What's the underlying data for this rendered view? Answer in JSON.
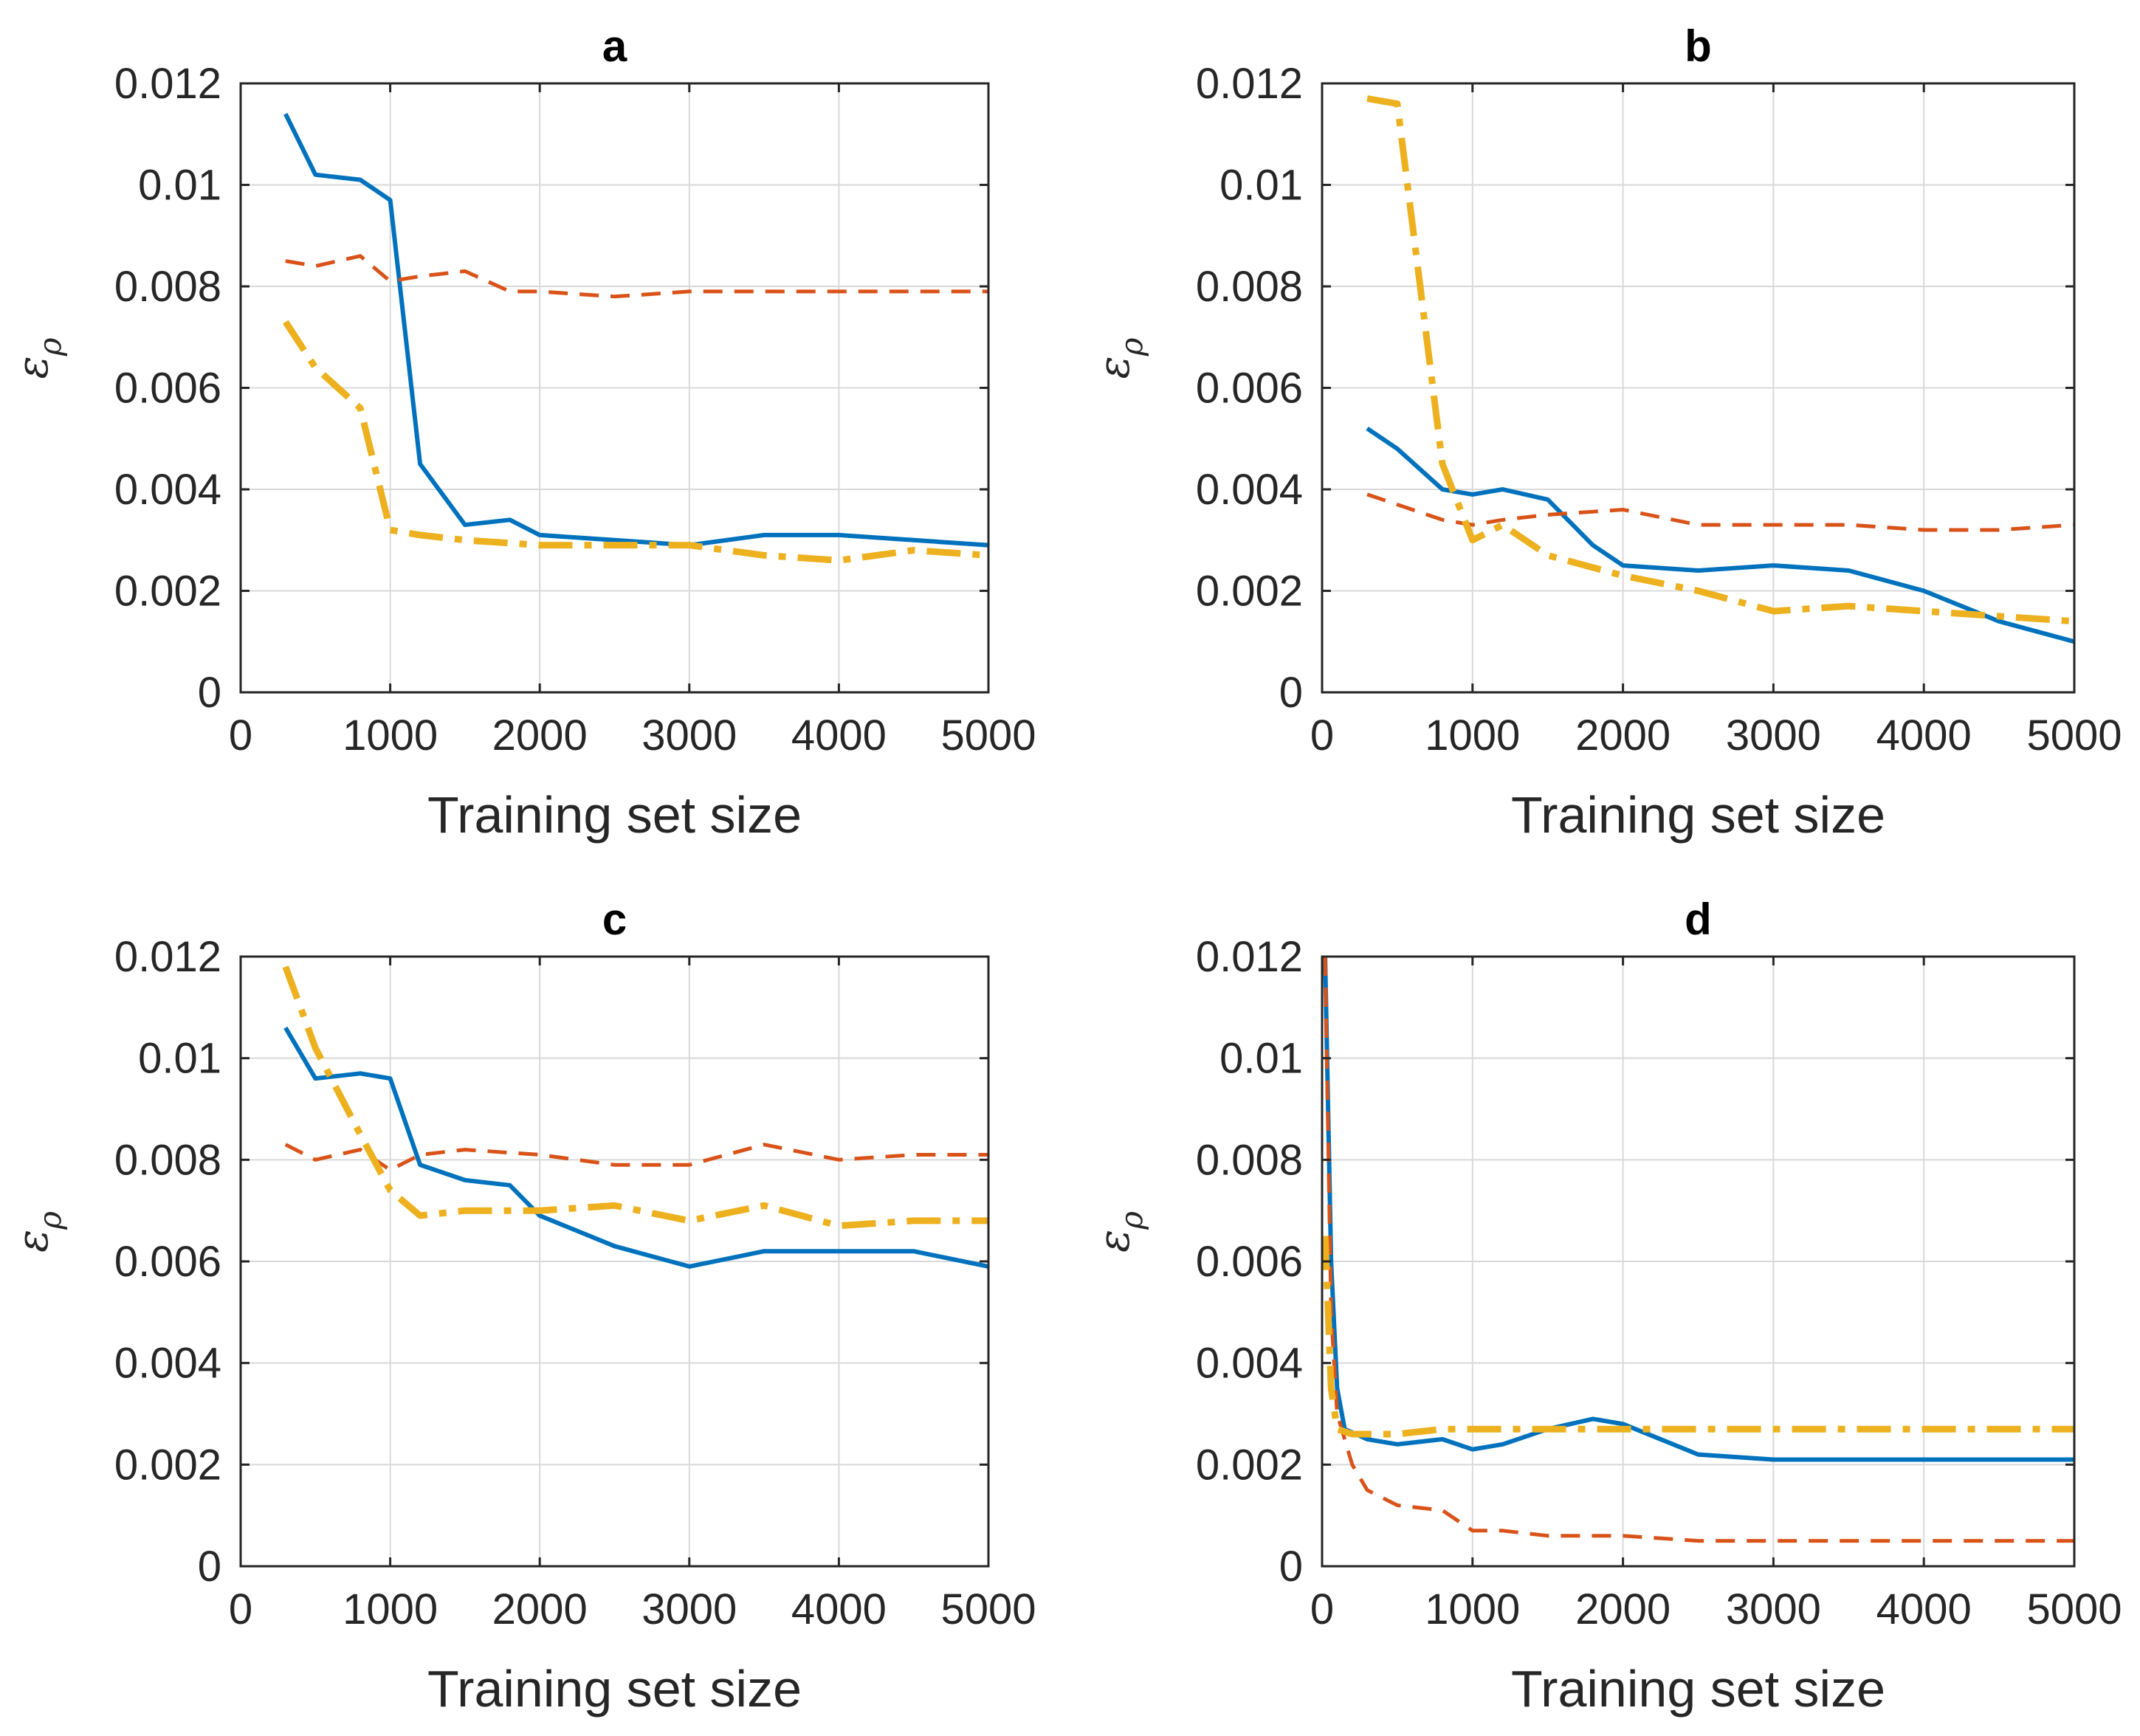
{
  "colors": {
    "blue": "#0072BD",
    "orange": "#D95319",
    "yellow": "#EDB120"
  },
  "chart_data": [
    {
      "type": "line",
      "title": "a",
      "xlabel": "Training set size",
      "ylabel": "ε",
      "ylabel_sub": "ρ",
      "xlim": [
        0,
        5000
      ],
      "ylim": [
        0,
        0.012
      ],
      "xticks": [
        0,
        1000,
        2000,
        3000,
        4000,
        5000
      ],
      "xtick_labels": [
        "0",
        "1000",
        "2000",
        "3000",
        "4000",
        "5000"
      ],
      "yticks": [
        0,
        0.002,
        0.004,
        0.006,
        0.008,
        0.01,
        0.012
      ],
      "ytick_labels": [
        "0",
        "0.002",
        "0.004",
        "0.006",
        "0.008",
        "0.01",
        "0.012"
      ],
      "grid": true,
      "series": [
        {
          "name": "solid",
          "color": "#0072BD",
          "dash": "solid",
          "width": 6,
          "x": [
            300,
            500,
            800,
            1000,
            1200,
            1500,
            1800,
            2000,
            2500,
            3000,
            3500,
            4000,
            4500,
            5000
          ],
          "y": [
            0.0114,
            0.0102,
            0.0101,
            0.0097,
            0.0045,
            0.0033,
            0.0034,
            0.0031,
            0.003,
            0.0029,
            0.0031,
            0.0031,
            0.003,
            0.0029
          ]
        },
        {
          "name": "dashed",
          "color": "#D95319",
          "dash": "dashed",
          "width": 5,
          "x": [
            300,
            500,
            800,
            1000,
            1200,
            1500,
            1800,
            2000,
            2500,
            3000,
            3500,
            4000,
            4500,
            5000
          ],
          "y": [
            0.0085,
            0.0084,
            0.0086,
            0.0081,
            0.0082,
            0.0083,
            0.0079,
            0.0079,
            0.0078,
            0.0079,
            0.0079,
            0.0079,
            0.0079,
            0.0079
          ]
        },
        {
          "name": "dashdot",
          "color": "#EDB120",
          "dash": "dashdot",
          "width": 9,
          "x": [
            300,
            500,
            800,
            1000,
            1200,
            1500,
            2000,
            2500,
            3000,
            3500,
            4000,
            4500,
            5000
          ],
          "y": [
            0.0073,
            0.0064,
            0.0056,
            0.0032,
            0.0031,
            0.003,
            0.0029,
            0.0029,
            0.0029,
            0.0027,
            0.0026,
            0.0028,
            0.0027
          ]
        }
      ]
    },
    {
      "type": "line",
      "title": "b",
      "xlabel": "Training set size",
      "ylabel": "ε",
      "ylabel_sub": "ρ",
      "xlim": [
        0,
        5000
      ],
      "ylim": [
        0,
        0.012
      ],
      "xticks": [
        0,
        1000,
        2000,
        3000,
        4000,
        5000
      ],
      "xtick_labels": [
        "0",
        "1000",
        "2000",
        "3000",
        "4000",
        "5000"
      ],
      "yticks": [
        0,
        0.002,
        0.004,
        0.006,
        0.008,
        0.01,
        0.012
      ],
      "ytick_labels": [
        "0",
        "0.002",
        "0.004",
        "0.006",
        "0.008",
        "0.01",
        "0.012"
      ],
      "grid": true,
      "series": [
        {
          "name": "solid",
          "color": "#0072BD",
          "dash": "solid",
          "width": 6,
          "x": [
            300,
            500,
            800,
            1000,
            1200,
            1500,
            1800,
            2000,
            2500,
            3000,
            3500,
            4000,
            4500,
            5000
          ],
          "y": [
            0.0052,
            0.0048,
            0.004,
            0.0039,
            0.004,
            0.0038,
            0.0029,
            0.0025,
            0.0024,
            0.0025,
            0.0024,
            0.002,
            0.0014,
            0.001
          ]
        },
        {
          "name": "dashed",
          "color": "#D95319",
          "dash": "dashed",
          "width": 5,
          "x": [
            300,
            500,
            800,
            1000,
            1200,
            1500,
            2000,
            2500,
            3000,
            3500,
            4000,
            4500,
            5000
          ],
          "y": [
            0.0039,
            0.0037,
            0.0034,
            0.0033,
            0.0034,
            0.0035,
            0.0036,
            0.0033,
            0.0033,
            0.0033,
            0.0032,
            0.0032,
            0.0033
          ]
        },
        {
          "name": "dashdot",
          "color": "#EDB120",
          "dash": "dashdot",
          "width": 9,
          "x": [
            300,
            500,
            800,
            1000,
            1200,
            1500,
            2000,
            2500,
            3000,
            3500,
            4000,
            4500,
            5000
          ],
          "y": [
            0.0117,
            0.0116,
            0.0045,
            0.003,
            0.0033,
            0.0027,
            0.0023,
            0.002,
            0.0016,
            0.0017,
            0.0016,
            0.0015,
            0.0014
          ]
        }
      ]
    },
    {
      "type": "line",
      "title": "c",
      "xlabel": "Training set size",
      "ylabel": "ε",
      "ylabel_sub": "ρ",
      "xlim": [
        0,
        5000
      ],
      "ylim": [
        0,
        0.012
      ],
      "xticks": [
        0,
        1000,
        2000,
        3000,
        4000,
        5000
      ],
      "xtick_labels": [
        "0",
        "1000",
        "2000",
        "3000",
        "4000",
        "5000"
      ],
      "yticks": [
        0,
        0.002,
        0.004,
        0.006,
        0.008,
        0.01,
        0.012
      ],
      "ytick_labels": [
        "0",
        "0.002",
        "0.004",
        "0.006",
        "0.008",
        "0.01",
        "0.012"
      ],
      "grid": true,
      "series": [
        {
          "name": "solid",
          "color": "#0072BD",
          "dash": "solid",
          "width": 6,
          "x": [
            300,
            500,
            800,
            1000,
            1200,
            1500,
            1800,
            2000,
            2500,
            3000,
            3500,
            4000,
            4500,
            5000
          ],
          "y": [
            0.0106,
            0.0096,
            0.0097,
            0.0096,
            0.0079,
            0.0076,
            0.0075,
            0.0069,
            0.0063,
            0.0059,
            0.0062,
            0.0062,
            0.0062,
            0.0059
          ]
        },
        {
          "name": "dashed",
          "color": "#D95319",
          "dash": "dashed",
          "width": 5,
          "x": [
            300,
            500,
            800,
            1000,
            1200,
            1500,
            2000,
            2500,
            3000,
            3500,
            4000,
            4500,
            5000
          ],
          "y": [
            0.0083,
            0.008,
            0.0082,
            0.0078,
            0.0081,
            0.0082,
            0.0081,
            0.0079,
            0.0079,
            0.0083,
            0.008,
            0.0081,
            0.0081
          ]
        },
        {
          "name": "dashdot",
          "color": "#EDB120",
          "dash": "dashdot",
          "width": 9,
          "x": [
            300,
            500,
            800,
            1000,
            1200,
            1500,
            2000,
            2500,
            3000,
            3500,
            4000,
            4500,
            5000
          ],
          "y": [
            0.0118,
            0.0102,
            0.0085,
            0.0074,
            0.0069,
            0.007,
            0.007,
            0.0071,
            0.0068,
            0.0071,
            0.0067,
            0.0068,
            0.0068
          ]
        }
      ]
    },
    {
      "type": "line",
      "title": "d",
      "xlabel": "Training set size",
      "ylabel": "ε",
      "ylabel_sub": "ρ",
      "xlim": [
        0,
        5000
      ],
      "ylim": [
        0,
        0.012
      ],
      "xticks": [
        0,
        1000,
        2000,
        3000,
        4000,
        5000
      ],
      "xtick_labels": [
        "0",
        "1000",
        "2000",
        "3000",
        "4000",
        "5000"
      ],
      "yticks": [
        0,
        0.002,
        0.004,
        0.006,
        0.008,
        0.01,
        0.012
      ],
      "ytick_labels": [
        "0",
        "0.002",
        "0.004",
        "0.006",
        "0.008",
        "0.01",
        "0.012"
      ],
      "grid": true,
      "series": [
        {
          "name": "solid",
          "color": "#0072BD",
          "dash": "solid",
          "width": 6,
          "x": [
            20,
            60,
            100,
            150,
            300,
            500,
            800,
            1000,
            1200,
            1500,
            1800,
            2000,
            2500,
            3000,
            3500,
            4000,
            4500,
            5000
          ],
          "y": [
            0.012,
            0.006,
            0.0035,
            0.0027,
            0.0025,
            0.0024,
            0.0025,
            0.0023,
            0.0024,
            0.0027,
            0.0029,
            0.0028,
            0.0022,
            0.0021,
            0.0021,
            0.0021,
            0.0021,
            0.0021
          ]
        },
        {
          "name": "dashed",
          "color": "#D95319",
          "dash": "dashed",
          "width": 5,
          "x": [
            20,
            60,
            100,
            200,
            300,
            500,
            800,
            1000,
            1200,
            1500,
            2000,
            2500,
            3000,
            3500,
            4000,
            4500,
            5000
          ],
          "y": [
            0.012,
            0.005,
            0.003,
            0.002,
            0.0015,
            0.0012,
            0.0011,
            0.0007,
            0.0007,
            0.0006,
            0.0006,
            0.0005,
            0.0005,
            0.0005,
            0.0005,
            0.0005,
            0.0005
          ]
        },
        {
          "name": "dashdot",
          "color": "#EDB120",
          "dash": "dashdot",
          "width": 9,
          "x": [
            20,
            60,
            100,
            200,
            300,
            500,
            800,
            1000,
            1500,
            2000,
            2500,
            3000,
            3500,
            4000,
            4500,
            5000
          ],
          "y": [
            0.0065,
            0.0035,
            0.0027,
            0.0026,
            0.0026,
            0.0026,
            0.0027,
            0.0027,
            0.0027,
            0.0027,
            0.0027,
            0.0027,
            0.0027,
            0.0027,
            0.0027,
            0.0027
          ]
        }
      ]
    }
  ]
}
